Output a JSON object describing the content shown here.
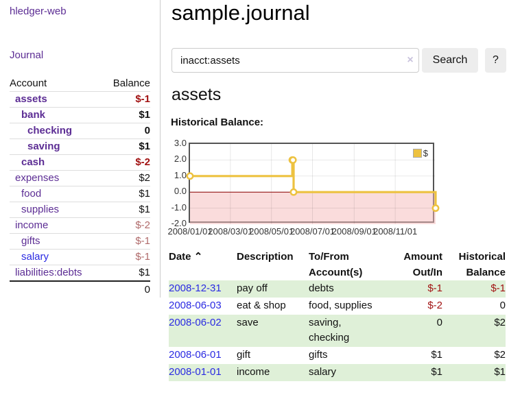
{
  "app": {
    "brand": "hledger-web",
    "nav_journal": "Journal"
  },
  "sidebar": {
    "col_account": "Account",
    "col_balance": "Balance",
    "accounts": [
      {
        "name": "assets",
        "depth": 1,
        "bold": true,
        "balance": "$-1",
        "neg": "strong"
      },
      {
        "name": "bank",
        "depth": 2,
        "bold": true,
        "balance": "$1"
      },
      {
        "name": "checking",
        "depth": 3,
        "bold": true,
        "balance": "0"
      },
      {
        "name": "saving",
        "depth": 3,
        "bold": true,
        "balance": "$1"
      },
      {
        "name": "cash",
        "depth": 2,
        "bold": true,
        "balance": "$-2",
        "neg": "strong"
      },
      {
        "name": "expenses",
        "depth": 1,
        "bold": false,
        "balance": "$2"
      },
      {
        "name": "food",
        "depth": 2,
        "bold": false,
        "balance": "$1"
      },
      {
        "name": "supplies",
        "depth": 2,
        "bold": false,
        "balance": "$1"
      },
      {
        "name": "income",
        "depth": 1,
        "bold": false,
        "balance": "$-2",
        "neg": "soft"
      },
      {
        "name": "gifts",
        "depth": 2,
        "bold": false,
        "balance": "$-1",
        "neg": "soft"
      },
      {
        "name": "salary",
        "depth": 2,
        "bold": false,
        "balance": "$-1",
        "neg": "soft",
        "blue": true
      },
      {
        "name": "liabilities:debts",
        "depth": 1,
        "bold": false,
        "balance": "$1"
      }
    ],
    "total": "0"
  },
  "header": {
    "title": "sample.journal"
  },
  "search": {
    "query": "inacct:assets",
    "clear_icon": "×",
    "button": "Search",
    "help_button": "?"
  },
  "register": {
    "heading": "assets",
    "chart_label": "Historical Balance:"
  },
  "chart_data": {
    "type": "line",
    "title": "Historical Balance",
    "step": true,
    "series": [
      {
        "name": "$",
        "points": [
          [
            "2008-01-01",
            1
          ],
          [
            "2008-06-01",
            2
          ],
          [
            "2008-06-02",
            2
          ],
          [
            "2008-06-03",
            0
          ],
          [
            "2008-12-31",
            -1
          ]
        ]
      }
    ],
    "xlim": [
      "2008-01-01",
      "2008-12-31"
    ],
    "ylim": [
      -2,
      3
    ],
    "yticks": [
      "3.0",
      "2.0",
      "1.0",
      "0.0",
      "-1.0",
      "-2.0"
    ],
    "xticks": [
      "2008/01/01",
      "2008/03/01",
      "2008/05/01",
      "2008/07/01",
      "2008/09/01",
      "2008/11/01"
    ],
    "legend": {
      "label": "$",
      "position": "top-right"
    },
    "colors": {
      "line": "#edc240",
      "marker_fill": "#ffffff",
      "zero_line": "#8b0000",
      "negative_region": "#f5baba",
      "grid": "rgba(0,0,0,0.09)",
      "border": "#545454"
    }
  },
  "table": {
    "headers": [
      "Date",
      "Description",
      "To/From Account(s)",
      "Amount Out/In",
      "Historical Balance"
    ],
    "sort_icon": "⌃",
    "rows": [
      {
        "date": "2008-12-31",
        "description": "pay off",
        "accounts": "debts",
        "amount": "$-1",
        "balance": "$-1"
      },
      {
        "date": "2008-06-03",
        "description": "eat & shop",
        "accounts": "food, supplies",
        "amount": "$-2",
        "balance": "0"
      },
      {
        "date": "2008-06-02",
        "description": "save",
        "accounts": "saving, checking",
        "amount": "0",
        "balance": "$2"
      },
      {
        "date": "2008-06-01",
        "description": "gift",
        "accounts": "gifts",
        "amount": "$1",
        "balance": "$2"
      },
      {
        "date": "2008-01-01",
        "description": "income",
        "accounts": "salary",
        "amount": "$1",
        "balance": "$1"
      }
    ]
  }
}
